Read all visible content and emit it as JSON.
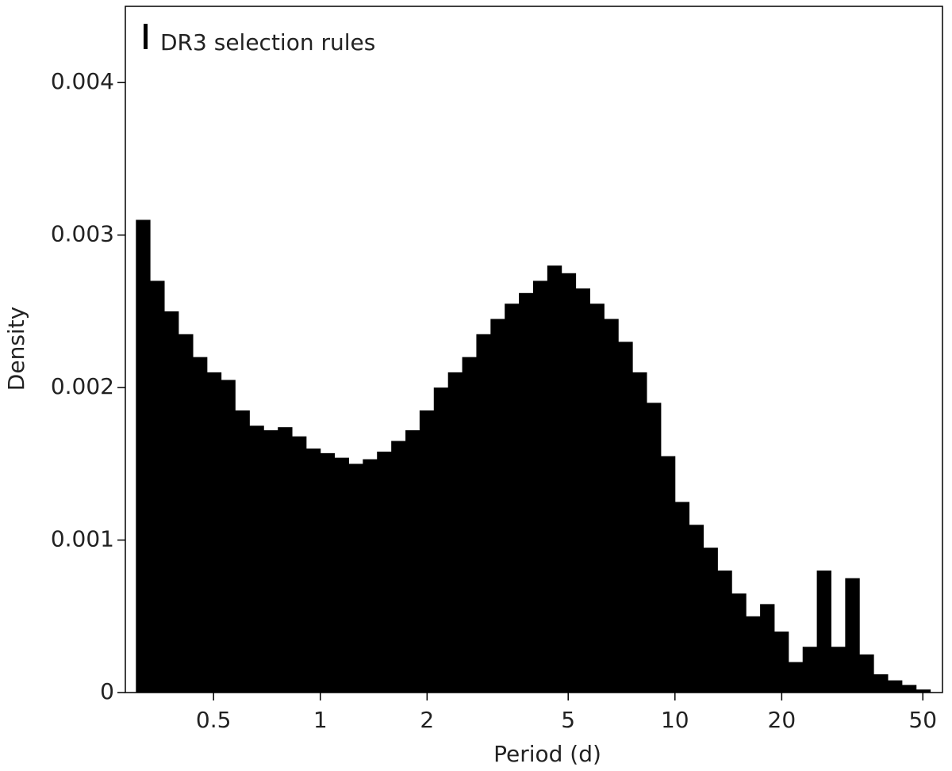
{
  "chart_data": {
    "type": "histogram",
    "xlabel": "Period (d)",
    "ylabel": "Density",
    "xscale": "log",
    "xlim": [
      0.282,
      56.8
    ],
    "xticks": [
      0.5,
      1,
      2,
      5,
      10,
      20,
      50
    ],
    "ylim": [
      0,
      0.0045
    ],
    "yticks": [
      0,
      0.001,
      0.002,
      0.003,
      0.004
    ],
    "legend": "upper left",
    "series": [
      {
        "name": "DR3 selection rules",
        "color": "#000000",
        "bins": [
          0.302,
          0.331,
          0.363,
          0.398,
          0.437,
          0.479,
          0.525,
          0.575,
          0.631,
          0.692,
          0.759,
          0.832,
          0.912,
          1,
          1.096,
          1.202,
          1.318,
          1.445,
          1.585,
          1.738,
          1.905,
          2.089,
          2.291,
          2.512,
          2.754,
          3.02,
          3.311,
          3.631,
          3.981,
          4.365,
          4.786,
          5.248,
          5.754,
          6.31,
          6.918,
          7.586,
          8.318,
          9.12,
          10,
          10.96,
          12.02,
          13.18,
          14.45,
          15.85,
          17.38,
          19.05,
          20.89,
          22.91,
          25.12,
          27.54,
          30.2,
          33.11,
          36.31,
          39.81,
          43.65,
          47.86,
          52.48
        ],
        "values": [
          0.0031,
          0.0027,
          0.0025,
          0.00235,
          0.0022,
          0.0021,
          0.00205,
          0.00185,
          0.00175,
          0.00172,
          0.00174,
          0.00168,
          0.0016,
          0.00157,
          0.00154,
          0.0015,
          0.00153,
          0.00158,
          0.00165,
          0.00172,
          0.00185,
          0.002,
          0.0021,
          0.0022,
          0.00235,
          0.00245,
          0.00255,
          0.00262,
          0.0027,
          0.0028,
          0.00275,
          0.00265,
          0.00255,
          0.00245,
          0.0023,
          0.0021,
          0.0019,
          0.00155,
          0.00125,
          0.0011,
          0.00095,
          0.0008,
          0.00065,
          0.0005,
          0.00058,
          0.0004,
          0.0002,
          0.0003,
          0.0008,
          0.0003,
          0.00075,
          0.00025,
          0.00012,
          8e-05,
          5e-05,
          2e-05
        ]
      }
    ]
  }
}
